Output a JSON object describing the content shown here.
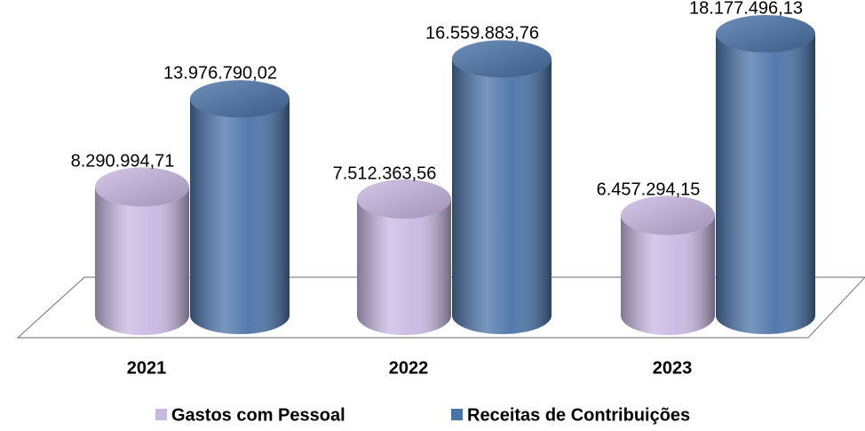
{
  "chart_data": {
    "type": "bar3d",
    "categories": [
      "2021",
      "2022",
      "2023"
    ],
    "series": [
      {
        "name": "Gastos com Pessoal",
        "color": "#c8b8e2",
        "values": [
          8290994.71,
          7512363.56,
          6457294.15
        ],
        "value_labels": [
          "8.290.994,71",
          "7.512.363,56",
          "6.457.294,15"
        ]
      },
      {
        "name": "Receitas de Contribuições",
        "color": "#4a73a8",
        "values": [
          13976790.02,
          16559883.76,
          18177496.13
        ],
        "value_labels": [
          "13.976.790,02",
          "16.559.883,76",
          "18.177.496,13"
        ]
      }
    ],
    "legend": "bottom"
  }
}
